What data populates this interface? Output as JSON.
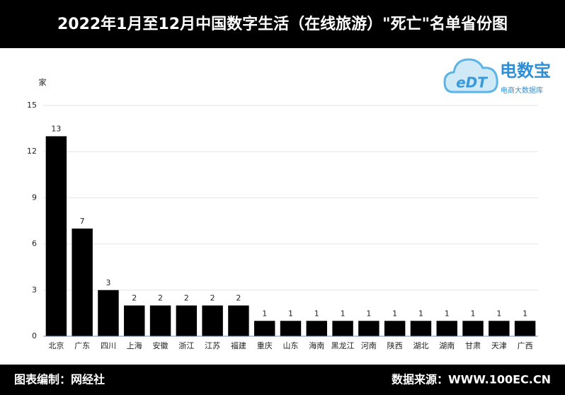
{
  "chart_data": {
    "type": "bar",
    "title": "2022年1月至12月中国数字生活（在线旅游）\"死亡\"名单省份图",
    "y_label": "家",
    "categories": [
      "北京",
      "广东",
      "四川",
      "上海",
      "安徽",
      "浙江",
      "江苏",
      "福建",
      "重庆",
      "山东",
      "海南",
      "黑龙江",
      "河南",
      "陕西",
      "湖北",
      "湖南",
      "甘肃",
      "天津",
      "广西"
    ],
    "values": [
      13,
      7,
      3,
      2,
      2,
      2,
      2,
      2,
      1,
      1,
      1,
      1,
      1,
      1,
      1,
      1,
      1,
      1,
      1
    ],
    "color": "#000000",
    "ylim": [
      0,
      15
    ],
    "yticks": [
      0,
      3,
      6,
      9,
      12,
      15
    ],
    "grid": true
  },
  "footer": {
    "left": "图表编制：网经社",
    "right": "数据来源：WWW.100EC.CN"
  },
  "logo": {
    "mark": "eDT",
    "name": "电数宝",
    "tagline": "电商大数据库"
  }
}
